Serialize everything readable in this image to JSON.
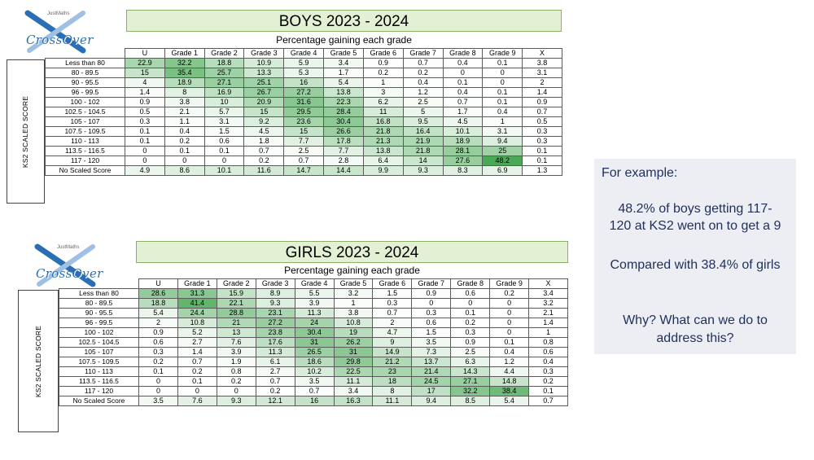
{
  "logo": {
    "brand": "CrossOver",
    "maker": "JustMaths"
  },
  "note": {
    "example": "For example:",
    "line1": "48.2% of boys getting 117-",
    "line2": "120 at KS2 went on to get a 9",
    "line3": "Compared with 38.4% of girls",
    "line4": "Why? What can we do to",
    "line5": "address this?"
  },
  "colors": {
    "banner_fill": "#e4f0d4",
    "heat_max": "#4aa956",
    "note_bg": "#eceef3",
    "note_text": "#1f2f5c"
  },
  "tables": [
    {
      "title": "BOYS 2023 - 2024",
      "subtitle": "Percentage gaining each grade",
      "side_label": "KS2 SCALED SCORE",
      "columns": [
        "U",
        "Grade 1",
        "Grade 2",
        "Grade 3",
        "Grade 4",
        "Grade 5",
        "Grade 6",
        "Grade 7",
        "Grade 8",
        "Grade 9",
        "X"
      ],
      "rows": [
        {
          "label": "Less than 80",
          "values": [
            "22.9",
            "32.2",
            "18.8",
            "10.9",
            "5.9",
            "3.4",
            "0.9",
            "0.7",
            "0.4",
            "0.1",
            "3.8"
          ]
        },
        {
          "label": "80 - 89.5",
          "values": [
            "15",
            "35.4",
            "25.7",
            "13.3",
            "5.3",
            "1.7",
            "0.2",
            "0.2",
            "0",
            "0",
            "3.1"
          ]
        },
        {
          "label": "90 - 95.5",
          "values": [
            "4",
            "18.9",
            "27.1",
            "25.1",
            "16",
            "5.4",
            "1",
            "0.4",
            "0.1",
            "0",
            "2"
          ]
        },
        {
          "label": "96 - 99.5",
          "values": [
            "1.4",
            "8",
            "16.9",
            "26.7",
            "27.2",
            "13.8",
            "3",
            "1.2",
            "0.4",
            "0.1",
            "1.4"
          ]
        },
        {
          "label": "100 - 102",
          "values": [
            "0.9",
            "3.8",
            "10",
            "20.9",
            "31.6",
            "22.3",
            "6.2",
            "2.5",
            "0.7",
            "0.1",
            "0.9"
          ]
        },
        {
          "label": "102.5 - 104.5",
          "values": [
            "0.5",
            "2.1",
            "5.7",
            "15",
            "29.5",
            "28.4",
            "11",
            "5",
            "1.7",
            "0.4",
            "0.7"
          ]
        },
        {
          "label": "105 - 107",
          "values": [
            "0.3",
            "1.1",
            "3.1",
            "9.2",
            "23.6",
            "30.4",
            "16.8",
            "9.5",
            "4.5",
            "1",
            "0.5"
          ]
        },
        {
          "label": "107.5 - 109.5",
          "values": [
            "0.1",
            "0.4",
            "1.5",
            "4.5",
            "15",
            "26.6",
            "21.8",
            "16.4",
            "10.1",
            "3.1",
            "0.3"
          ]
        },
        {
          "label": "110 - 113",
          "values": [
            "0.1",
            "0.2",
            "0.6",
            "1.8",
            "7.7",
            "17.8",
            "21.3",
            "21.9",
            "18.9",
            "9.4",
            "0.3"
          ]
        },
        {
          "label": "113.5 - 116.5",
          "values": [
            "0",
            "0.1",
            "0.1",
            "0.7",
            "2.5",
            "7.7",
            "13.8",
            "21.8",
            "28.1",
            "25",
            "0.1"
          ]
        },
        {
          "label": "117 - 120",
          "values": [
            "0",
            "0",
            "0",
            "0.2",
            "0.7",
            "2.8",
            "6.4",
            "14",
            "27.6",
            "48.2",
            "0.1"
          ]
        },
        {
          "label": "No Scaled Score",
          "values": [
            "4.9",
            "8.6",
            "10.1",
            "11.6",
            "14.7",
            "14.4",
            "9.9",
            "9.3",
            "8.3",
            "6.9",
            "1.3"
          ]
        }
      ]
    },
    {
      "title": "GIRLS 2023 - 2024",
      "subtitle": "Percentage gaining each grade",
      "side_label": "KS2 SCALED SCORE",
      "columns": [
        "U",
        "Grade 1",
        "Grade 2",
        "Grade 3",
        "Grade 4",
        "Grade 5",
        "Grade 6",
        "Grade 7",
        "Grade 8",
        "Grade 9",
        "X"
      ],
      "rows": [
        {
          "label": "Less than 80",
          "values": [
            "28.6",
            "31.3",
            "15.9",
            "8.9",
            "5.5",
            "3.2",
            "1.5",
            "0.9",
            "0.6",
            "0.2",
            "3.4"
          ]
        },
        {
          "label": "80 - 89.5",
          "values": [
            "18.8",
            "41.4",
            "22.1",
            "9.3",
            "3.9",
            "1",
            "0.3",
            "0",
            "0",
            "0",
            "3.2"
          ]
        },
        {
          "label": "90 - 95.5",
          "values": [
            "5.4",
            "24.4",
            "28.8",
            "23.1",
            "11.3",
            "3.8",
            "0.7",
            "0.3",
            "0.1",
            "0",
            "2.1"
          ]
        },
        {
          "label": "96 - 99.5",
          "values": [
            "2",
            "10.8",
            "21",
            "27.2",
            "24",
            "10.8",
            "2",
            "0.6",
            "0.2",
            "0",
            "1.4"
          ]
        },
        {
          "label": "100 - 102",
          "values": [
            "0.9",
            "5.2",
            "13",
            "23.8",
            "30.4",
            "19",
            "4.7",
            "1.5",
            "0.3",
            "0",
            "1"
          ]
        },
        {
          "label": "102.5 - 104.5",
          "values": [
            "0.6",
            "2.7",
            "7.6",
            "17.6",
            "31",
            "26.2",
            "9",
            "3.5",
            "0.9",
            "0.1",
            "0.8"
          ]
        },
        {
          "label": "105 - 107",
          "values": [
            "0.3",
            "1.4",
            "3.9",
            "11.3",
            "26.5",
            "31",
            "14.9",
            "7.3",
            "2.5",
            "0.4",
            "0.6"
          ]
        },
        {
          "label": "107.5 - 109.5",
          "values": [
            "0.2",
            "0.7",
            "1.9",
            "6.1",
            "18.6",
            "29.8",
            "21.2",
            "13.7",
            "6.3",
            "1.2",
            "0.4"
          ]
        },
        {
          "label": "110 - 113",
          "values": [
            "0.1",
            "0.2",
            "0.8",
            "2.7",
            "10.2",
            "22.5",
            "23",
            "21.4",
            "14.3",
            "4.4",
            "0.3"
          ]
        },
        {
          "label": "113.5 - 116.5",
          "values": [
            "0",
            "0.1",
            "0.2",
            "0.7",
            "3.5",
            "11.1",
            "18",
            "24.5",
            "27.1",
            "14.8",
            "0.2"
          ]
        },
        {
          "label": "117 - 120",
          "values": [
            "0",
            "0",
            "0",
            "0.2",
            "0.7",
            "3.4",
            "8",
            "17",
            "32.2",
            "38.4",
            "0.1"
          ]
        },
        {
          "label": "No Scaled Score",
          "values": [
            "3.5",
            "7.6",
            "9.3",
            "12.1",
            "16",
            "16.3",
            "11.1",
            "9.4",
            "8.5",
            "5.4",
            "0.7"
          ]
        }
      ]
    }
  ]
}
